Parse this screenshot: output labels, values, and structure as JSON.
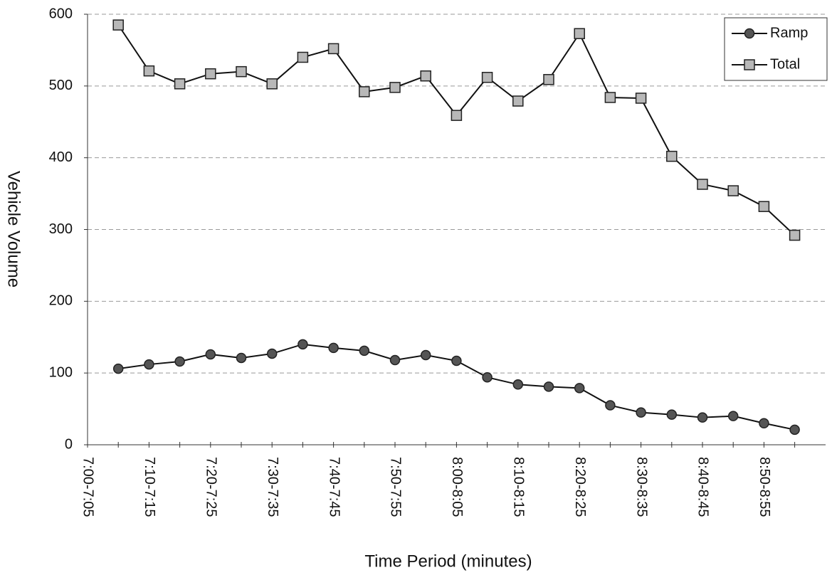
{
  "chart_data": {
    "type": "line",
    "y_label": "Vehicle Volume",
    "x_label": "Time Period (minutes)",
    "categories": [
      "7:00-7:05",
      null,
      "7:10-7:15",
      null,
      "7:20-7:25",
      null,
      "7:30-7:35",
      null,
      "7:40-7:45",
      null,
      "7:50-7:55",
      null,
      "8:00-8:05",
      null,
      "8:10-8:15",
      null,
      "8:20-8:25",
      null,
      "8:30-8:35",
      null,
      "8:40-8:45",
      null,
      "8:50-8:55",
      null
    ],
    "series": [
      {
        "name": "Ramp",
        "color": "#555555",
        "marker": "circle",
        "values": [
          null,
          106,
          112,
          116,
          126,
          121,
          127,
          140,
          135,
          131,
          118,
          125,
          117,
          94,
          84,
          81,
          79,
          55,
          45,
          42,
          38,
          40,
          30,
          21
        ]
      },
      {
        "name": "Total",
        "color": "#b8b8b8",
        "marker": "square",
        "values": [
          null,
          585,
          521,
          503,
          517,
          520,
          503,
          540,
          552,
          492,
          498,
          514,
          459,
          512,
          479,
          509,
          573,
          484,
          483,
          402,
          363,
          354,
          332,
          292
        ]
      }
    ],
    "ylim": [
      0,
      600
    ],
    "yticks": [
      0,
      100,
      200,
      300,
      400,
      500,
      600
    ],
    "grid": true,
    "legend": "upper right"
  }
}
